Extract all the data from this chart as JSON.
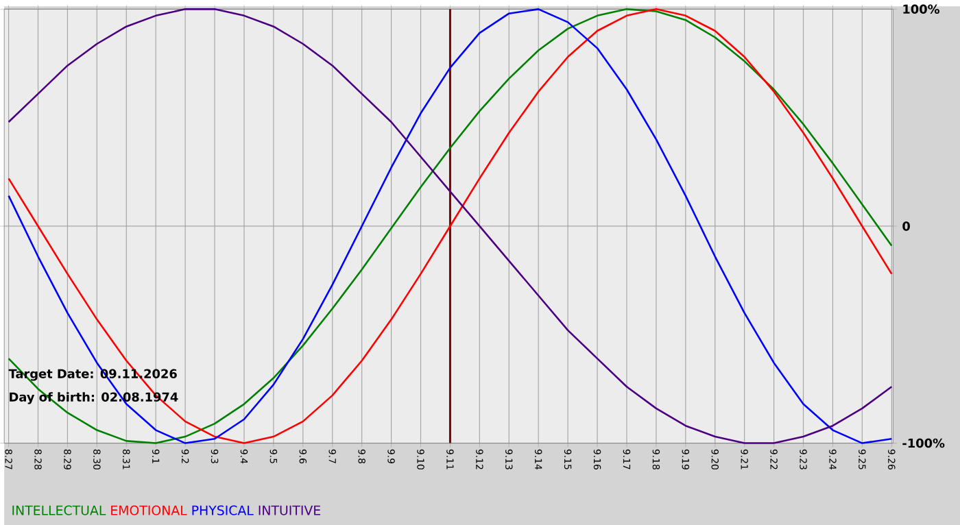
{
  "chart_data": {
    "type": "line",
    "categories": [
      "8.27",
      "8.28",
      "8.29",
      "8.30",
      "8.31",
      "9.1",
      "9.2",
      "9.3",
      "9.4",
      "9.5",
      "9.6",
      "9.7",
      "9.8",
      "9.9",
      "9.10",
      "9.11",
      "9.12",
      "9.13",
      "9.14",
      "9.15",
      "9.16",
      "9.17",
      "9.18",
      "9.19",
      "9.20",
      "9.21",
      "9.22",
      "9.23",
      "9.24",
      "9.25",
      "9.26"
    ],
    "series": [
      {
        "name": "INTELLECTUAL",
        "color": "#008000",
        "values": [
          -61,
          -75,
          -86,
          -94,
          -99,
          -100,
          -97,
          -91,
          -82,
          -70,
          -55,
          -38,
          -20,
          -1,
          18,
          36,
          53,
          68,
          81,
          91,
          97,
          100,
          99,
          95,
          87,
          76,
          63,
          47,
          29,
          10,
          -9
        ]
      },
      {
        "name": "EMOTIONAL",
        "color": "#ff0000",
        "values": [
          22,
          0,
          -22,
          -43,
          -62,
          -78,
          -90,
          -97,
          -100,
          -97,
          -90,
          -78,
          -62,
          -43,
          -22,
          0,
          22,
          43,
          62,
          78,
          90,
          97,
          100,
          97,
          90,
          78,
          62,
          43,
          22,
          0,
          -22
        ]
      },
      {
        "name": "PHYSICAL",
        "color": "#0000ff",
        "values": [
          14,
          -14,
          -40,
          -63,
          -82,
          -94,
          -100,
          -98,
          -89,
          -73,
          -52,
          -27,
          0,
          27,
          52,
          73,
          89,
          98,
          100,
          94,
          82,
          63,
          40,
          14,
          -14,
          -40,
          -63,
          -82,
          -94,
          -100,
          -98
        ]
      },
      {
        "name": "INTUITIVE",
        "color": "#4b0082",
        "values": [
          48,
          61,
          74,
          84,
          92,
          97,
          100,
          100,
          97,
          92,
          84,
          74,
          61,
          48,
          32,
          16,
          0,
          -16,
          -32,
          -48,
          -61,
          -74,
          -84,
          -92,
          -97,
          -100,
          -100,
          -97,
          -92,
          -84,
          -74
        ]
      }
    ],
    "ylim": [
      -100,
      100
    ],
    "yticks": [
      {
        "value": 100,
        "label": "100%"
      },
      0,
      {
        "value": -100,
        "label": "-100%"
      }
    ],
    "ref_lines": [
      {
        "axis": "x",
        "value": "9.11",
        "color": "#800000"
      }
    ],
    "annotations": [
      "Target Date: 09.11.2026",
      "Day of birth: 02.08.1974"
    ],
    "grid": true,
    "legend": "bottom",
    "line_style": "solid",
    "marker": "none"
  }
}
